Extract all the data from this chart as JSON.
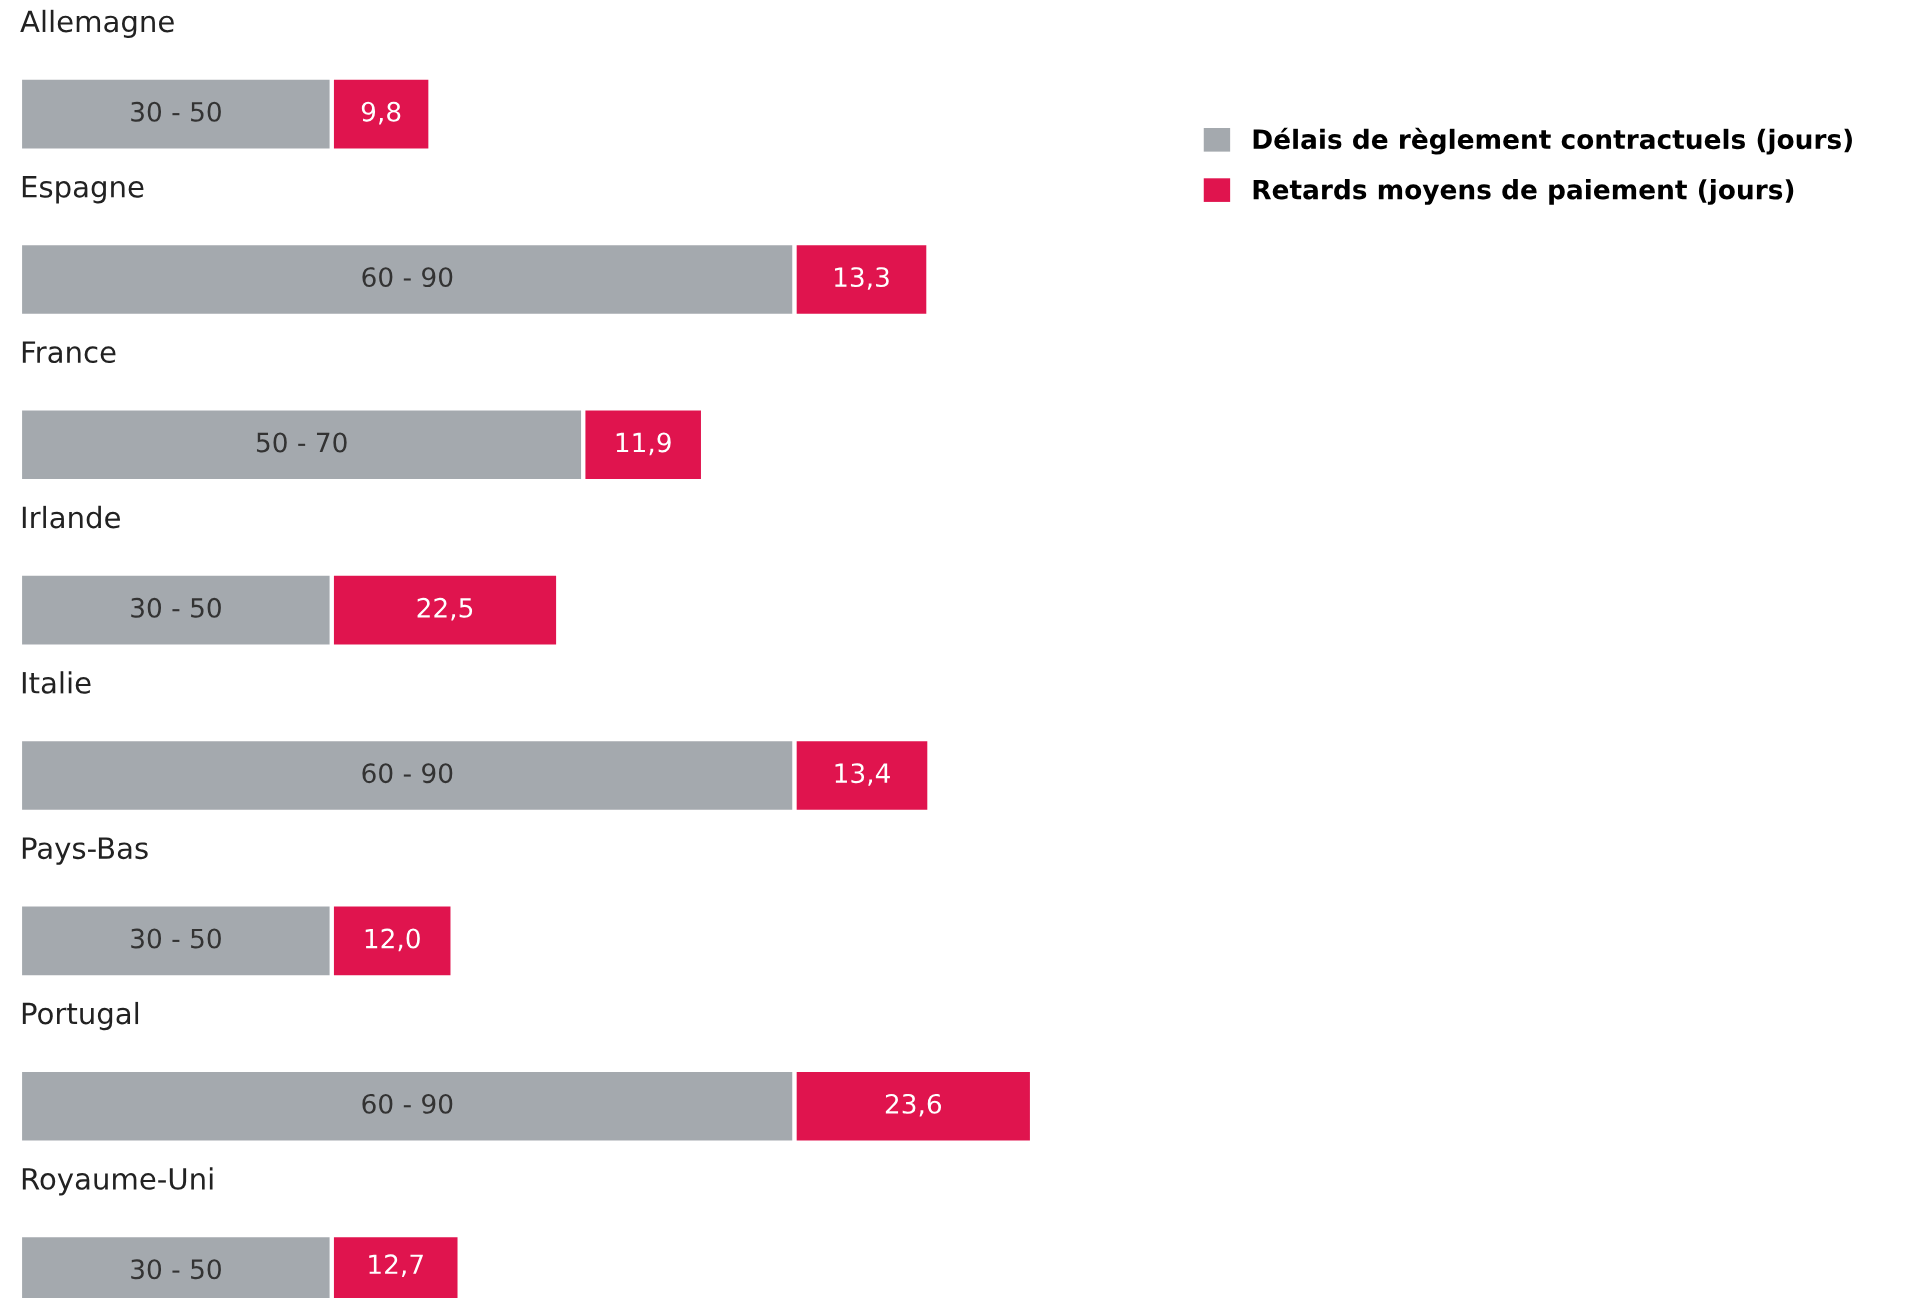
{
  "chart_data": {
    "type": "bar",
    "orientation": "horizontal",
    "stacked": true,
    "categories": [
      "Allemagne",
      "Espagne",
      "France",
      "Irlande",
      "Italie",
      "Pays-Bas",
      "Portugal",
      "Royaume-Uni"
    ],
    "series": [
      {
        "name": "Délais de règlement contractuels (jours)",
        "color": "#a4a9ae",
        "values": [
          31,
          77,
          56,
          31,
          77,
          31,
          77,
          31
        ]
      },
      {
        "name": "Retards moyens de paiement (jours)",
        "color": "#e0144e",
        "values": [
          9.8,
          13.3,
          11.9,
          22.5,
          13.4,
          12.0,
          23.6,
          12.7
        ],
        "value_labels": [
          "9,8",
          "13,3",
          "11,9",
          "22,5",
          "13,4",
          "12,0",
          "23,6",
          "12,7"
        ]
      }
    ],
    "annotations": [
      "30 - 50",
      "60 - 90",
      "50 - 70",
      "30 - 50",
      "60 - 90",
      "30 - 50",
      "60 - 90",
      "30 - 50"
    ],
    "legend": "top right"
  }
}
